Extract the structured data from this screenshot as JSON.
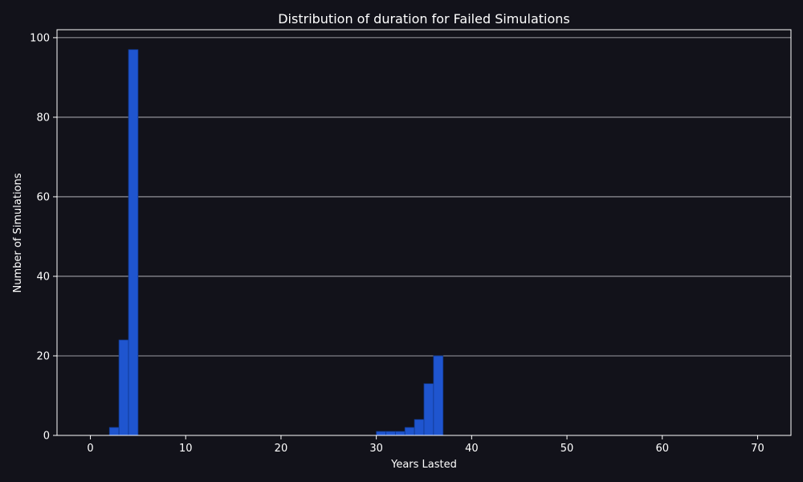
{
  "chart_data": {
    "type": "bar",
    "title": "Distribution of duration for Failed Simulations",
    "xlabel": "Years Lasted",
    "ylabel": "Number of Simulations",
    "xlim": [
      -3.5,
      73.5
    ],
    "ylim": [
      0,
      102
    ],
    "x_ticks": [
      0,
      10,
      20,
      30,
      40,
      50,
      60,
      70
    ],
    "y_ticks": [
      0,
      20,
      40,
      60,
      80,
      100
    ],
    "grid": "horizontal",
    "bins": [
      {
        "x": 2.5,
        "value": 2
      },
      {
        "x": 3.5,
        "value": 24
      },
      {
        "x": 4.5,
        "value": 97
      },
      {
        "x": 30.5,
        "value": 1
      },
      {
        "x": 31.5,
        "value": 1
      },
      {
        "x": 32.5,
        "value": 1
      },
      {
        "x": 33.5,
        "value": 2
      },
      {
        "x": 34.5,
        "value": 4
      },
      {
        "x": 35.5,
        "value": 13
      },
      {
        "x": 36.5,
        "value": 20
      }
    ],
    "colors": {
      "background": "#12121a",
      "bar_fill": "#1f55cf",
      "bar_edge": "#11398f",
      "axis": "#ffffff",
      "grid": "#c9c9d0",
      "text": "#ffffff"
    }
  }
}
